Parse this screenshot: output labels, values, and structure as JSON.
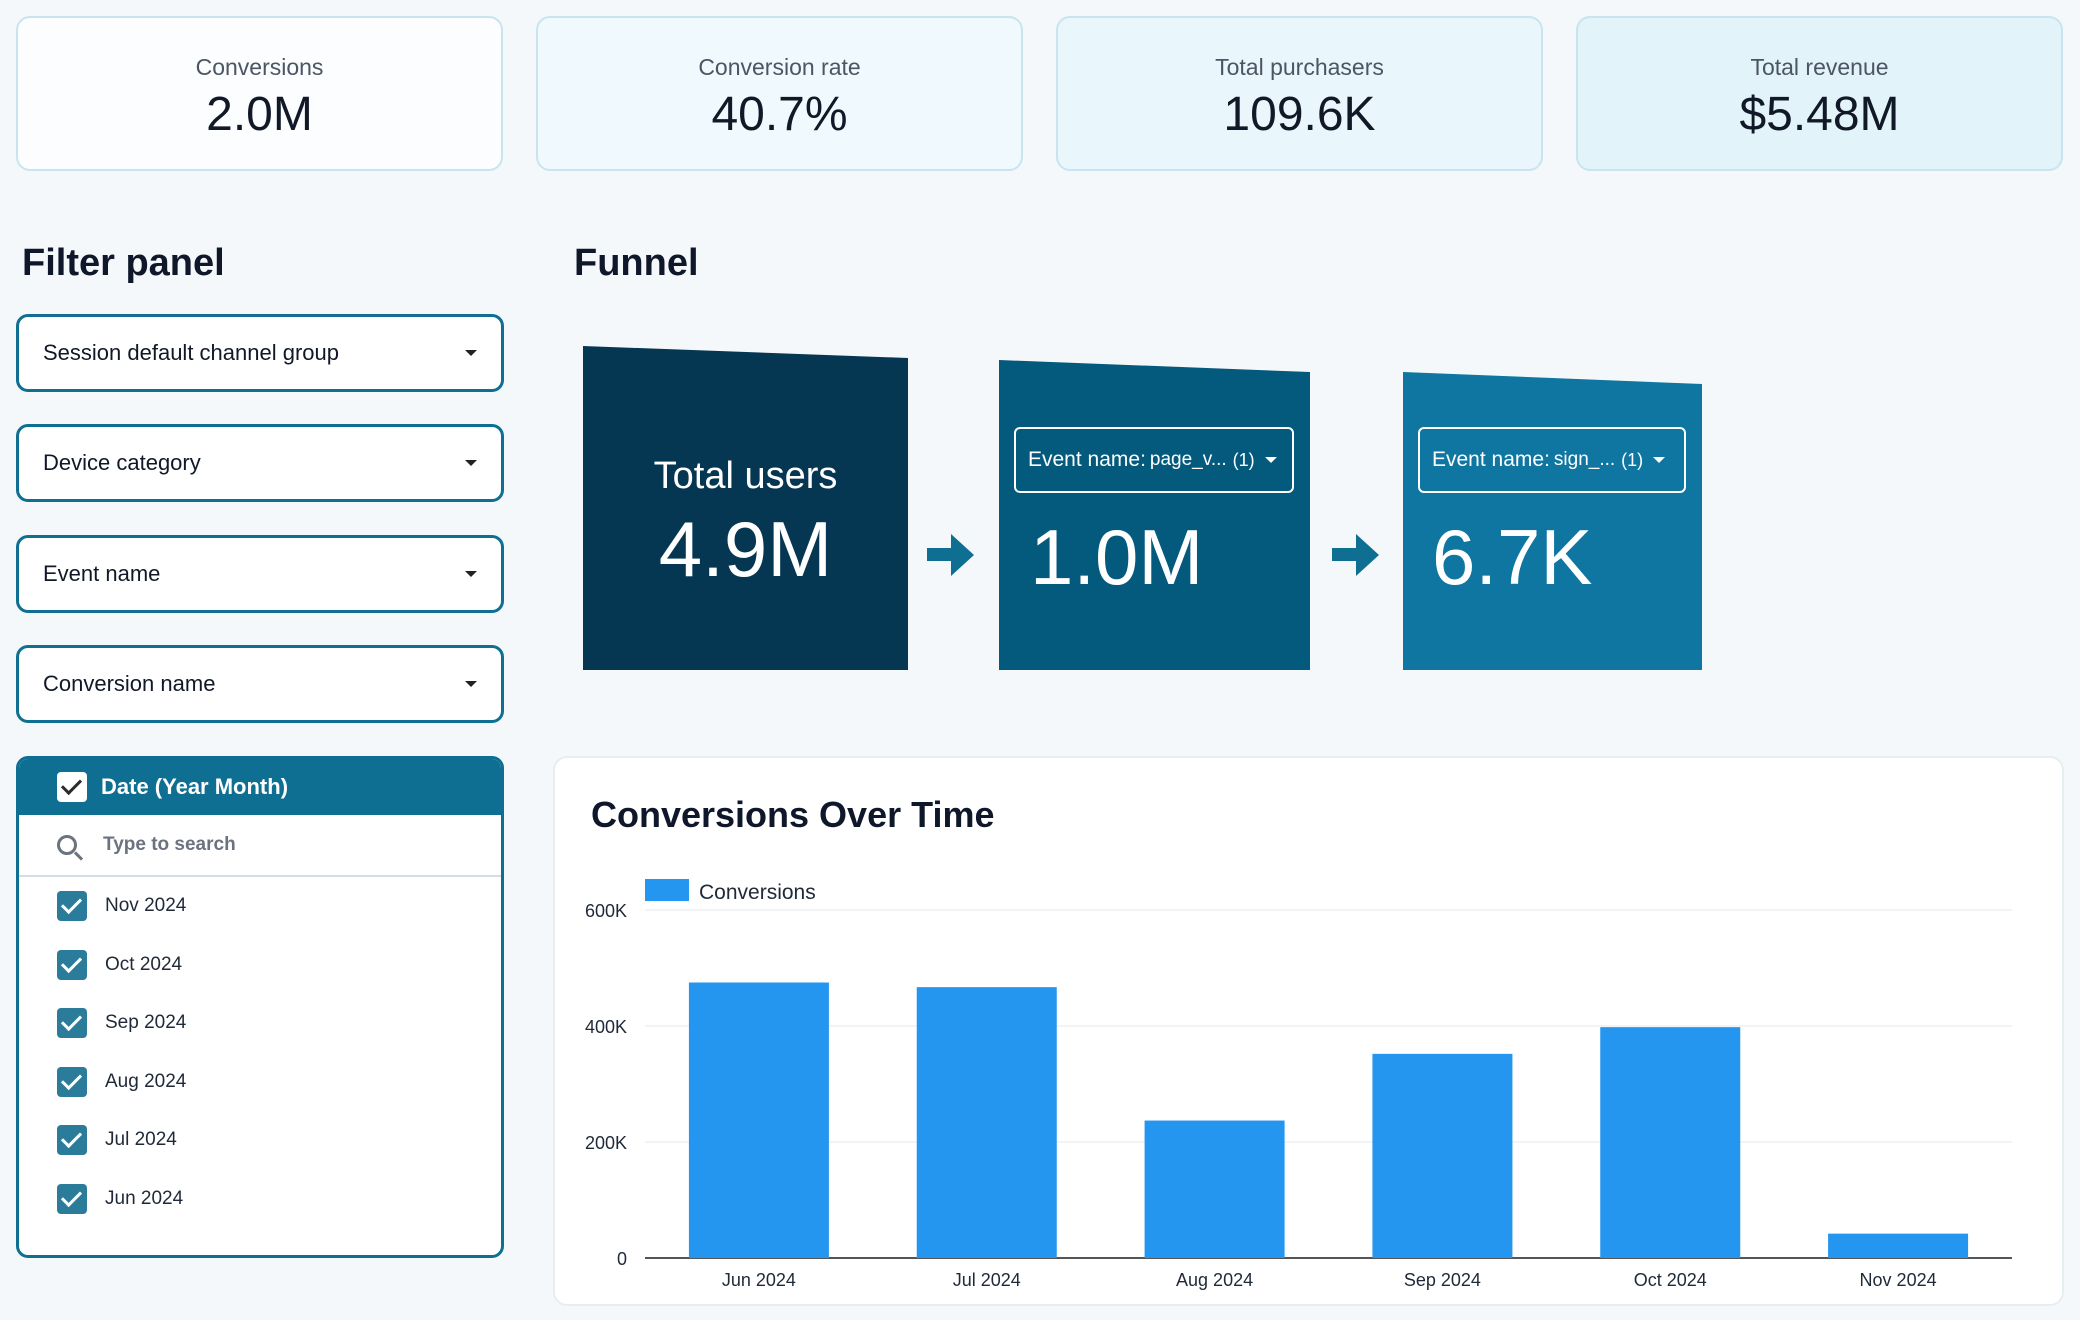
{
  "kpis": [
    {
      "label": "Conversions",
      "value": "2.0M",
      "bg": "#fbfdfe"
    },
    {
      "label": "Conversion rate",
      "value": "40.7%",
      "bg": "#f0f9fd"
    },
    {
      "label": "Total purchasers",
      "value": "109.6K",
      "bg": "#e9f6fb"
    },
    {
      "label": "Total revenue",
      "value": "$5.48M",
      "bg": "#e3f3fa"
    }
  ],
  "filter_panel": {
    "title": "Filter panel",
    "dropdowns": [
      "Session default channel group",
      "Device category",
      "Event name",
      "Conversion name"
    ],
    "date_list": {
      "header": "Date (Year Month)",
      "search_placeholder": "Type to search",
      "items": [
        "Nov 2024",
        "Oct 2024",
        "Sep 2024",
        "Aug 2024",
        "Jul 2024",
        "Jun 2024"
      ]
    }
  },
  "funnel": {
    "title": "Funnel",
    "steps": [
      {
        "label": "Total users",
        "value": "4.9M",
        "color": "#063752"
      },
      {
        "event_label": "Event name:",
        "event_value": "page_v...",
        "count": "(1)",
        "value": "1.0M",
        "color": "#045a7d"
      },
      {
        "event_label": "Event name:",
        "event_value": "sign_...",
        "count": "(1)",
        "value": "6.7K",
        "color": "#0e76a1"
      }
    ],
    "arrow_color": "#0e6f92"
  },
  "chart": {
    "title": "Conversions Over Time",
    "legend": "Conversions"
  },
  "chart_data": {
    "type": "bar",
    "title": "Conversions Over Time",
    "categories": [
      "Jun 2024",
      "Jul 2024",
      "Aug 2024",
      "Sep 2024",
      "Oct 2024",
      "Nov 2024"
    ],
    "series": [
      {
        "name": "Conversions",
        "values": [
          475000,
          467000,
          237000,
          352000,
          398000,
          42000
        ],
        "color": "#2496f0"
      }
    ],
    "ylim": [
      0,
      600000
    ],
    "yticks": [
      0,
      200000,
      400000,
      600000
    ],
    "ytick_labels": [
      "0",
      "200K",
      "400K",
      "600K"
    ],
    "xlabel": "",
    "ylabel": "",
    "grid": true,
    "legend_position": "top-left"
  }
}
